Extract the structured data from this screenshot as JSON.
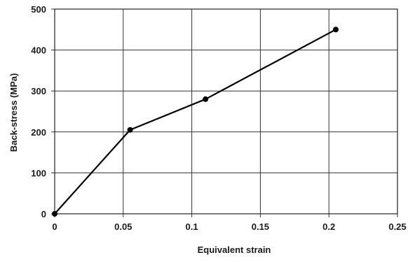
{
  "chart_data": {
    "type": "line",
    "title": "",
    "xlabel": "Equivalent strain",
    "ylabel": "Back-stress (MPa)",
    "xlim": [
      0,
      0.25
    ],
    "ylim": [
      0,
      500
    ],
    "x_ticks": [
      "0",
      "0.05",
      "0.1",
      "0.15",
      "0.2",
      "0.25"
    ],
    "y_ticks": [
      "0",
      "100",
      "200",
      "300",
      "400",
      "500"
    ],
    "grid": true,
    "legend": "none",
    "series": [
      {
        "x": [
          0,
          0.055,
          0.11,
          0.205
        ],
        "y": [
          0,
          205,
          280,
          450
        ],
        "color": "#000000",
        "marker": "circle"
      }
    ]
  }
}
